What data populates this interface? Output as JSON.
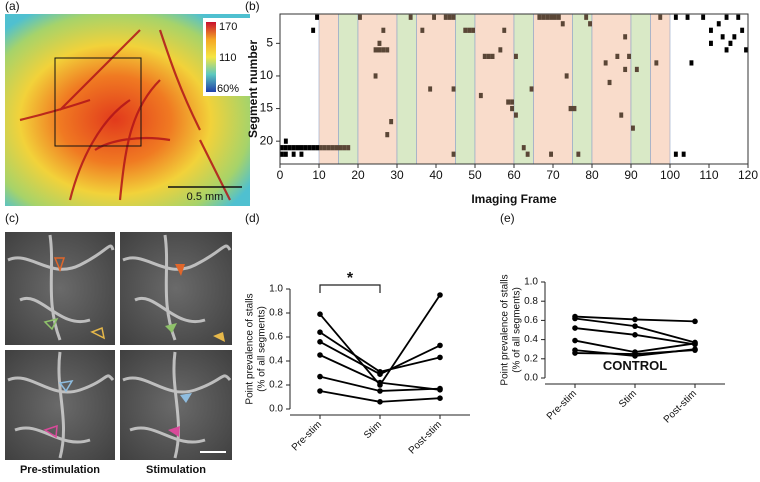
{
  "panels": {
    "a": {
      "label": "(a)",
      "colorbar_ticks": [
        "170",
        "110",
        "60%"
      ],
      "scale_bar": "0.5 mm"
    },
    "c": {
      "label": "(c)",
      "captions": [
        "Pre-stimulation",
        "Stimulation"
      ]
    }
  },
  "chart_data": [
    {
      "type": "raster",
      "panel_label": "(b)",
      "xlabel": "Imaging Frame",
      "ylabel": "Segment number",
      "xlim": [
        0,
        120
      ],
      "xticks": [
        0,
        10,
        20,
        30,
        40,
        50,
        60,
        70,
        80,
        90,
        100,
        110,
        120
      ],
      "ylim": [
        0.5,
        23.5
      ],
      "yticks": [
        5,
        10,
        15,
        20
      ],
      "y_inverted": true,
      "bands": [
        {
          "start": 10,
          "end": 15,
          "color": "#f9dccb"
        },
        {
          "start": 15,
          "end": 20,
          "color": "#d9e9c6"
        },
        {
          "start": 20,
          "end": 30,
          "color": "#f9dccb"
        },
        {
          "start": 30,
          "end": 35,
          "color": "#d9e9c6"
        },
        {
          "start": 35,
          "end": 45,
          "color": "#f9dccb"
        },
        {
          "start": 45,
          "end": 50,
          "color": "#d9e9c6"
        },
        {
          "start": 50,
          "end": 60,
          "color": "#f9dccb"
        },
        {
          "start": 60,
          "end": 65,
          "color": "#d9e9c6"
        },
        {
          "start": 65,
          "end": 75,
          "color": "#f9dccb"
        },
        {
          "start": 75,
          "end": 80,
          "color": "#d9e9c6"
        },
        {
          "start": 80,
          "end": 90,
          "color": "#f9dccb"
        },
        {
          "start": 90,
          "end": 95,
          "color": "#d9e9c6"
        },
        {
          "start": 95,
          "end": 100,
          "color": "#f9dccb"
        }
      ],
      "series": [
        {
          "color": "#000000",
          "x": [
            0,
            1,
            2,
            3,
            4,
            5,
            6,
            7,
            8,
            9,
            0,
            1,
            3,
            5,
            1,
            9,
            8,
            101,
            104,
            108,
            110,
            112,
            113,
            114,
            115,
            116,
            117,
            118,
            119,
            105,
            101,
            103,
            110,
            114
          ],
          "y": [
            21,
            21,
            21,
            21,
            21,
            21,
            21,
            21,
            21,
            21,
            22,
            22,
            22,
            22,
            20,
            1,
            3,
            1,
            1,
            1,
            3,
            2,
            4,
            1,
            5,
            4,
            1,
            3,
            6,
            8,
            22,
            22,
            5,
            6
          ]
        },
        {
          "color": "#5a4636",
          "x": [
            10,
            11,
            12,
            13,
            14,
            15,
            16,
            17,
            20,
            25,
            24,
            25,
            26,
            27,
            26,
            27,
            28,
            24,
            33,
            38,
            39,
            42,
            43,
            44,
            44,
            44,
            36,
            47,
            48,
            49,
            51,
            52,
            53,
            54,
            56,
            58,
            59,
            59,
            60,
            60,
            64,
            66,
            67,
            68,
            69,
            70,
            71,
            72,
            74,
            75,
            73,
            62,
            63,
            76,
            69,
            78,
            83,
            84,
            86,
            87,
            88,
            89,
            88,
            91,
            90,
            96,
            97,
            57,
            79
          ],
          "y": [
            21,
            21,
            21,
            21,
            21,
            21,
            21,
            21,
            1,
            5,
            6,
            6,
            6,
            6,
            3,
            19,
            17,
            10,
            1,
            12,
            1,
            1,
            1,
            1,
            12,
            22,
            3,
            3,
            3,
            3,
            13,
            7,
            7,
            7,
            6,
            14,
            14,
            15,
            16,
            7,
            12,
            1,
            1,
            1,
            1,
            1,
            1,
            2,
            15,
            15,
            10,
            21,
            22,
            22,
            22,
            1,
            8,
            11,
            7,
            16,
            9,
            7,
            4,
            9,
            18,
            8,
            1,
            3,
            2
          ]
        }
      ]
    },
    {
      "type": "line",
      "panel_label": "(d)",
      "ylabel": [
        "Point prevalence of stalls",
        "(% of all segments)"
      ],
      "categories": [
        "Pre-stim",
        "Stim",
        "Post-stim"
      ],
      "ylim": [
        0,
        1
      ],
      "yticks": [
        {
          "value": 0,
          "label": "0.0"
        },
        0.2,
        0.4,
        0.6,
        0.8,
        {
          "value": 1,
          "label": "1.0"
        }
      ],
      "annotation": "*",
      "series": [
        {
          "color": "#000000",
          "values": [
            0.79,
            0.2,
            0.95
          ]
        },
        {
          "color": "#000000",
          "values": [
            0.64,
            0.31,
            0.43
          ]
        },
        {
          "color": "#000000",
          "values": [
            0.56,
            0.29,
            0.53
          ]
        },
        {
          "color": "#000000",
          "values": [
            0.45,
            0.22,
            0.16
          ]
        },
        {
          "color": "#000000",
          "values": [
            0.27,
            0.15,
            0.17
          ]
        },
        {
          "color": "#000000",
          "values": [
            0.15,
            0.06,
            0.09
          ]
        }
      ]
    },
    {
      "type": "line",
      "panel_label": "(e)",
      "ylabel": [
        "Point prevalence of stalls",
        "(% of all segments)"
      ],
      "categories": [
        "Pre-stim",
        "Stim",
        "Post-stim"
      ],
      "ylim": [
        0,
        1
      ],
      "yticks": [
        {
          "value": 0,
          "label": "0.0"
        },
        0.2,
        0.4,
        0.6,
        0.8,
        {
          "value": 1,
          "label": "1.0"
        }
      ],
      "annotation": "CONTROL",
      "annotation_color": "#e02424",
      "series": [
        {
          "color": "#000000",
          "values": [
            0.64,
            0.61,
            0.59
          ]
        },
        {
          "color": "#000000",
          "values": [
            0.62,
            0.54,
            0.37
          ]
        },
        {
          "color": "#000000",
          "values": [
            0.52,
            0.45,
            0.35
          ]
        },
        {
          "color": "#000000",
          "values": [
            0.39,
            0.27,
            0.36
          ]
        },
        {
          "color": "#000000",
          "values": [
            0.29,
            0.23,
            0.3
          ]
        },
        {
          "color": "#000000",
          "values": [
            0.26,
            0.25,
            0.29
          ]
        }
      ]
    }
  ]
}
